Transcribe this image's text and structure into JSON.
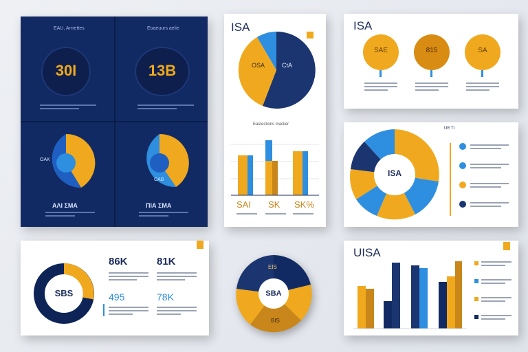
{
  "colors": {
    "navy": "#122a63",
    "deep_navy": "#0e2457",
    "gold": "#f0a91e",
    "dark_gold": "#c9861a",
    "sky": "#2e8ee0",
    "white": "#ffffff"
  },
  "dark_panel": {
    "left": {
      "header": "EAU, Arrrettes",
      "ring_value": "30Ι",
      "pie_center": "OAK",
      "footer": "ΑΛΙ ΣΜΑ"
    },
    "right": {
      "header": "Eoaeuurs aelie",
      "ring_value": "13B",
      "pie_center": "CAB",
      "footer": "ΠΙΑ ΣΜΑ"
    }
  },
  "pie_card": {
    "title": "ISA",
    "slice_left": "OSA",
    "slice_right": "CtA",
    "bar_header": "Eastestions Inaclier",
    "bar_labels": [
      "SAI",
      "SK",
      "SK%"
    ]
  },
  "bubble_card": {
    "title": "ISA",
    "bubbles": [
      "SAE",
      "815",
      "SA"
    ]
  },
  "donut_card": {
    "center": "ISA",
    "side_tag": "UE Tt"
  },
  "ring_card": {
    "center": "SBS",
    "stats": [
      "86K",
      "81K",
      "495",
      "78K"
    ]
  },
  "round_pie": {
    "center": "SBA",
    "top": "EIS",
    "bottom": "BIS"
  },
  "bar_card": {
    "title": "UISA"
  }
}
